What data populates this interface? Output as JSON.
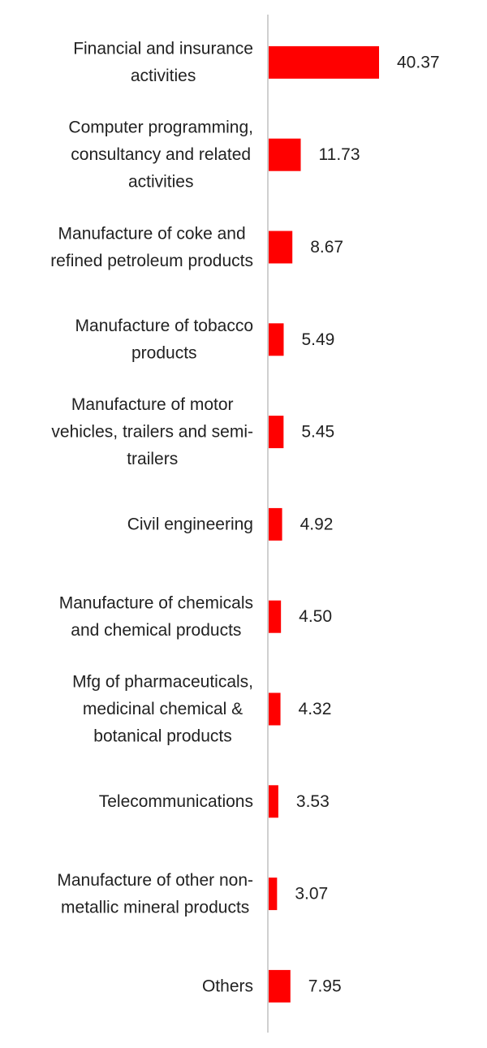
{
  "chart_data": {
    "type": "bar",
    "orientation": "horizontal",
    "title": "",
    "xlabel": "",
    "ylabel": "",
    "xlim": [
      0,
      40.37
    ],
    "grid": false,
    "legend": "none",
    "bar_color": "#ff0000",
    "categories": [
      [
        "Financial and insurance",
        "activities"
      ],
      [
        "Computer programming,",
        "consultancy and related",
        "activities"
      ],
      [
        "Manufacture of coke and",
        "refined petroleum products"
      ],
      [
        "Manufacture of tobacco",
        "products"
      ],
      [
        "Manufacture of motor",
        "vehicles, trailers and semi-",
        "trailers"
      ],
      [
        "Civil engineering"
      ],
      [
        "Manufacture of chemicals",
        "and chemical products"
      ],
      [
        "Mfg of pharmaceuticals,",
        "medicinal chemical &",
        "botanical products"
      ],
      [
        "Telecommunications"
      ],
      [
        "Manufacture of other non-",
        "metallic mineral products"
      ],
      [
        "Others"
      ]
    ],
    "values": [
      40.37,
      11.73,
      8.67,
      5.49,
      5.45,
      4.92,
      4.5,
      4.32,
      3.53,
      3.07,
      7.95
    ],
    "value_labels": [
      "40.37",
      "11.73",
      "8.67",
      "5.49",
      "5.45",
      "4.92",
      "4.50",
      "4.32",
      "3.53",
      "3.07",
      "7.95"
    ]
  }
}
